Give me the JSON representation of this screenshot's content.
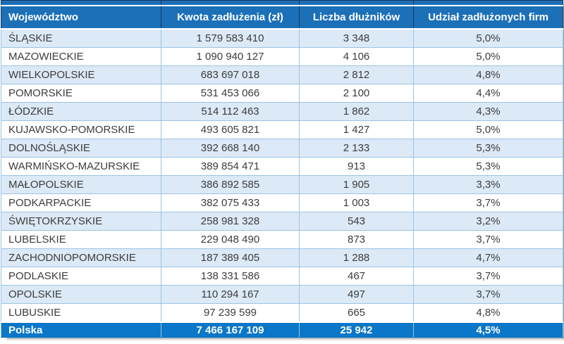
{
  "colors": {
    "header_bg": "#1C70B8",
    "header_line": "#17375E",
    "header_text": "#FFFFFF",
    "total_bg": "#0A77C8",
    "row_alt_bg": "#DCE9F6",
    "grid_line": "#9CC3E5",
    "body_text": "#3C3C3C"
  },
  "chart_data": {
    "type": "table",
    "columns": [
      "Województwo",
      "Kwota zadłużenia (zł)",
      "Liczba dłużników",
      "Udział zadłużonych firm"
    ],
    "rows": [
      {
        "region": "ŚLĄSKIE",
        "debt": "1 579 583 410",
        "debtors": "3 348",
        "share": "5,0%"
      },
      {
        "region": "MAZOWIECKIE",
        "debt": "1 090 940 127",
        "debtors": "4 106",
        "share": "5,0%"
      },
      {
        "region": "WIELKOPOLSKIE",
        "debt": "683 697 018",
        "debtors": "2 812",
        "share": "4,8%"
      },
      {
        "region": "POMORSKIE",
        "debt": "531 453 066",
        "debtors": "2 100",
        "share": "4,4%"
      },
      {
        "region": "ŁÓDZKIE",
        "debt": "514 112 463",
        "debtors": "1 862",
        "share": "4,3%"
      },
      {
        "region": "KUJAWSKO-POMORSKIE",
        "debt": "493 605 821",
        "debtors": "1 427",
        "share": "5,0%"
      },
      {
        "region": "DOLNOŚLĄSKIE",
        "debt": "392 668 140",
        "debtors": "2 133",
        "share": "5,3%"
      },
      {
        "region": "WARMIŃSKO-MAZURSKIE",
        "debt": "389 854 471",
        "debtors": "913",
        "share": "5,3%"
      },
      {
        "region": "MAŁOPOLSKIE",
        "debt": "386 892 585",
        "debtors": "1 905",
        "share": "3,3%"
      },
      {
        "region": "PODKARPACKIE",
        "debt": "382 075 433",
        "debtors": "1 003",
        "share": "3,7%"
      },
      {
        "region": "ŚWIĘTOKRZYSKIE",
        "debt": "258 981 328",
        "debtors": "543",
        "share": "3,2%"
      },
      {
        "region": "LUBELSKIE",
        "debt": "229 048 490",
        "debtors": "873",
        "share": "3,7%"
      },
      {
        "region": "ZACHODNIOPOMORSKIE",
        "debt": "187 389 405",
        "debtors": "1 288",
        "share": "4,7%"
      },
      {
        "region": "PODLASKIE",
        "debt": "138 331 586",
        "debtors": "467",
        "share": "3,7%"
      },
      {
        "region": "OPOLSKIE",
        "debt": "110 294 167",
        "debtors": "497",
        "share": "3,7%"
      },
      {
        "region": "LUBUSKIE",
        "debt": "97 239 599",
        "debtors": "665",
        "share": "4,8%"
      }
    ],
    "total": {
      "region": "Polska",
      "debt": "7 466 167 109",
      "debtors": "25 942",
      "share": "4,5%"
    }
  }
}
